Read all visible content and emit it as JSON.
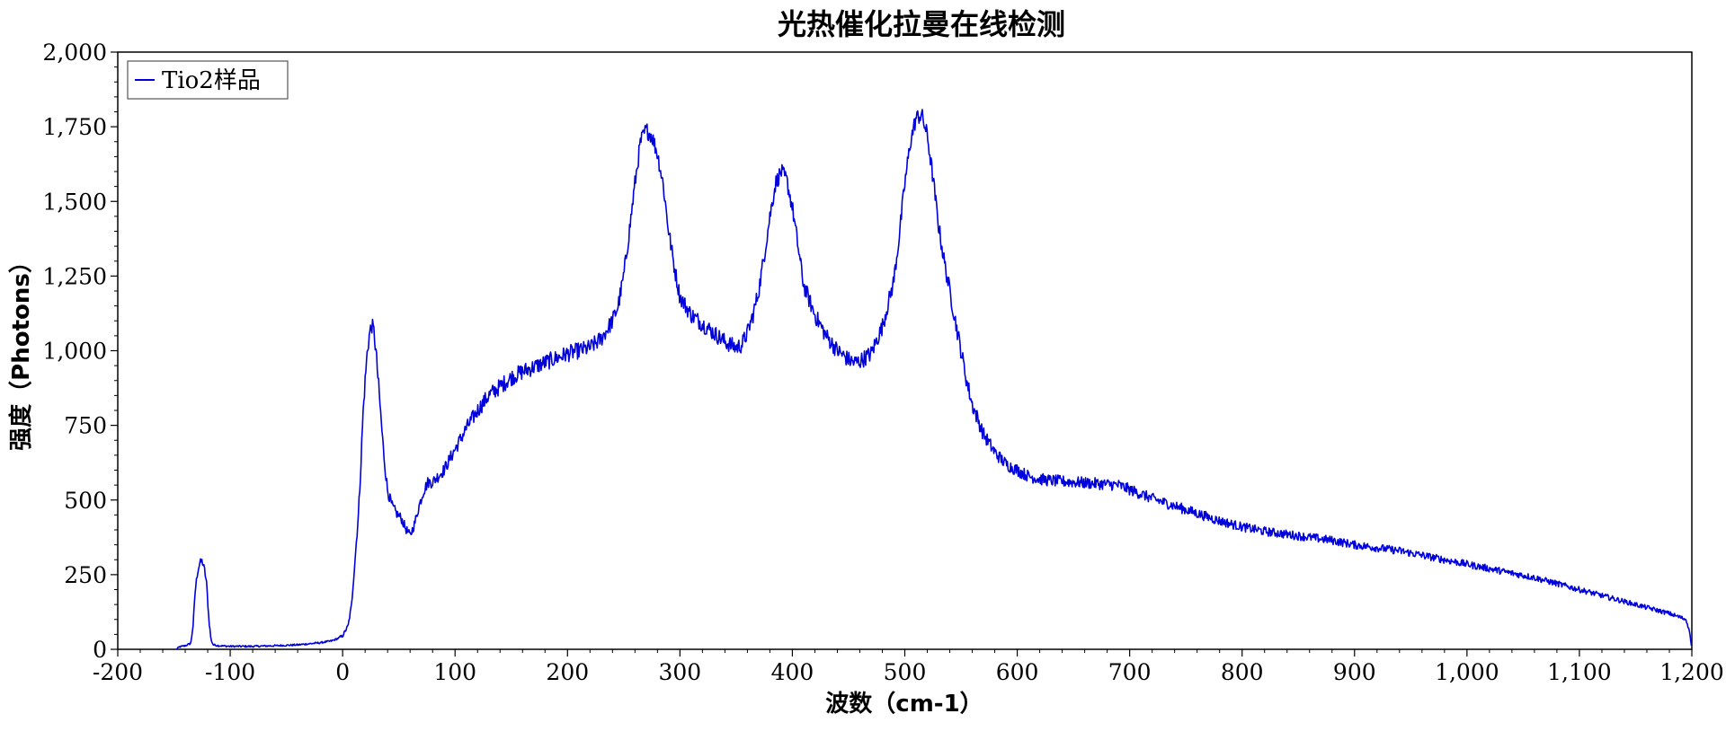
{
  "chart_data": {
    "type": "line",
    "title": "光热催化拉曼在线检测",
    "xlabel": "波数（cm-1）",
    "ylabel": "强度（Photons）",
    "xlim": [
      -200,
      1200
    ],
    "ylim": [
      0,
      2000
    ],
    "x_ticks": [
      -200,
      -100,
      0,
      100,
      200,
      300,
      400,
      500,
      600,
      700,
      800,
      900,
      1000,
      1100,
      1200
    ],
    "x_tick_labels": [
      "-200",
      "-100",
      "0",
      "100",
      "200",
      "300",
      "400",
      "500",
      "600",
      "700",
      "800",
      "900",
      "1,000",
      "1,100",
      "1,200"
    ],
    "y_ticks": [
      0,
      250,
      500,
      750,
      1000,
      1250,
      1500,
      1750,
      2000
    ],
    "y_tick_labels": [
      "0",
      "250",
      "500",
      "750",
      "1,000",
      "1,250",
      "1,500",
      "1,750",
      "2,000"
    ],
    "grid": false,
    "legend": "top-left",
    "series": [
      {
        "name": "Tio2样品",
        "color": "#0000dd",
        "points": [
          [
            -148,
            0
          ],
          [
            -145,
            8
          ],
          [
            -140,
            12
          ],
          [
            -135,
            20
          ],
          [
            -133,
            80
          ],
          [
            -131,
            200
          ],
          [
            -129,
            260
          ],
          [
            -127,
            290
          ],
          [
            -125,
            295
          ],
          [
            -123,
            270
          ],
          [
            -121,
            220
          ],
          [
            -119,
            100
          ],
          [
            -117,
            30
          ],
          [
            -115,
            15
          ],
          [
            -110,
            12
          ],
          [
            -100,
            10
          ],
          [
            -80,
            10
          ],
          [
            -60,
            12
          ],
          [
            -40,
            15
          ],
          [
            -20,
            22
          ],
          [
            -10,
            28
          ],
          [
            -5,
            35
          ],
          [
            0,
            45
          ],
          [
            5,
            80
          ],
          [
            8,
            150
          ],
          [
            10,
            250
          ],
          [
            12,
            350
          ],
          [
            14,
            450
          ],
          [
            16,
            600
          ],
          [
            18,
            780
          ],
          [
            20,
            900
          ],
          [
            22,
            1000
          ],
          [
            24,
            1060
          ],
          [
            26,
            1085
          ],
          [
            28,
            1060
          ],
          [
            30,
            980
          ],
          [
            32,
            880
          ],
          [
            34,
            780
          ],
          [
            36,
            680
          ],
          [
            38,
            600
          ],
          [
            40,
            530
          ],
          [
            44,
            480
          ],
          [
            48,
            455
          ],
          [
            52,
            440
          ],
          [
            56,
            405
          ],
          [
            60,
            380
          ],
          [
            64,
            420
          ],
          [
            68,
            480
          ],
          [
            72,
            530
          ],
          [
            76,
            560
          ],
          [
            80,
            560
          ],
          [
            90,
            600
          ],
          [
            100,
            670
          ],
          [
            110,
            740
          ],
          [
            120,
            800
          ],
          [
            130,
            850
          ],
          [
            140,
            880
          ],
          [
            150,
            910
          ],
          [
            160,
            930
          ],
          [
            170,
            945
          ],
          [
            180,
            960
          ],
          [
            190,
            975
          ],
          [
            200,
            990
          ],
          [
            210,
            1000
          ],
          [
            220,
            1010
          ],
          [
            230,
            1040
          ],
          [
            240,
            1100
          ],
          [
            245,
            1150
          ],
          [
            250,
            1250
          ],
          [
            255,
            1400
          ],
          [
            260,
            1560
          ],
          [
            265,
            1700
          ],
          [
            270,
            1740
          ],
          [
            275,
            1720
          ],
          [
            280,
            1660
          ],
          [
            285,
            1560
          ],
          [
            290,
            1400
          ],
          [
            295,
            1280
          ],
          [
            300,
            1180
          ],
          [
            310,
            1120
          ],
          [
            320,
            1090
          ],
          [
            330,
            1060
          ],
          [
            340,
            1030
          ],
          [
            350,
            1010
          ],
          [
            355,
            1020
          ],
          [
            360,
            1060
          ],
          [
            365,
            1120
          ],
          [
            370,
            1200
          ],
          [
            375,
            1320
          ],
          [
            380,
            1450
          ],
          [
            385,
            1560
          ],
          [
            390,
            1600
          ],
          [
            395,
            1570
          ],
          [
            400,
            1480
          ],
          [
            405,
            1350
          ],
          [
            410,
            1220
          ],
          [
            420,
            1120
          ],
          [
            430,
            1050
          ],
          [
            440,
            1000
          ],
          [
            450,
            970
          ],
          [
            455,
            960
          ],
          [
            460,
            965
          ],
          [
            470,
            990
          ],
          [
            480,
            1080
          ],
          [
            490,
            1230
          ],
          [
            495,
            1380
          ],
          [
            500,
            1560
          ],
          [
            505,
            1700
          ],
          [
            510,
            1780
          ],
          [
            515,
            1790
          ],
          [
            520,
            1720
          ],
          [
            525,
            1580
          ],
          [
            530,
            1420
          ],
          [
            535,
            1300
          ],
          [
            540,
            1200
          ],
          [
            545,
            1100
          ],
          [
            550,
            1000
          ],
          [
            555,
            900
          ],
          [
            560,
            820
          ],
          [
            570,
            720
          ],
          [
            580,
            660
          ],
          [
            590,
            620
          ],
          [
            600,
            600
          ],
          [
            610,
            580
          ],
          [
            620,
            570
          ],
          [
            630,
            565
          ],
          [
            650,
            560
          ],
          [
            670,
            555
          ],
          [
            690,
            550
          ],
          [
            700,
            535
          ],
          [
            710,
            520
          ],
          [
            720,
            505
          ],
          [
            740,
            480
          ],
          [
            760,
            455
          ],
          [
            780,
            430
          ],
          [
            800,
            410
          ],
          [
            820,
            395
          ],
          [
            840,
            385
          ],
          [
            860,
            375
          ],
          [
            880,
            365
          ],
          [
            900,
            350
          ],
          [
            920,
            340
          ],
          [
            940,
            330
          ],
          [
            960,
            315
          ],
          [
            980,
            300
          ],
          [
            1000,
            285
          ],
          [
            1020,
            270
          ],
          [
            1040,
            255
          ],
          [
            1060,
            240
          ],
          [
            1080,
            220
          ],
          [
            1100,
            200
          ],
          [
            1120,
            180
          ],
          [
            1140,
            160
          ],
          [
            1160,
            140
          ],
          [
            1180,
            120
          ],
          [
            1195,
            100
          ],
          [
            1198,
            60
          ],
          [
            1200,
            0
          ]
        ]
      }
    ]
  }
}
